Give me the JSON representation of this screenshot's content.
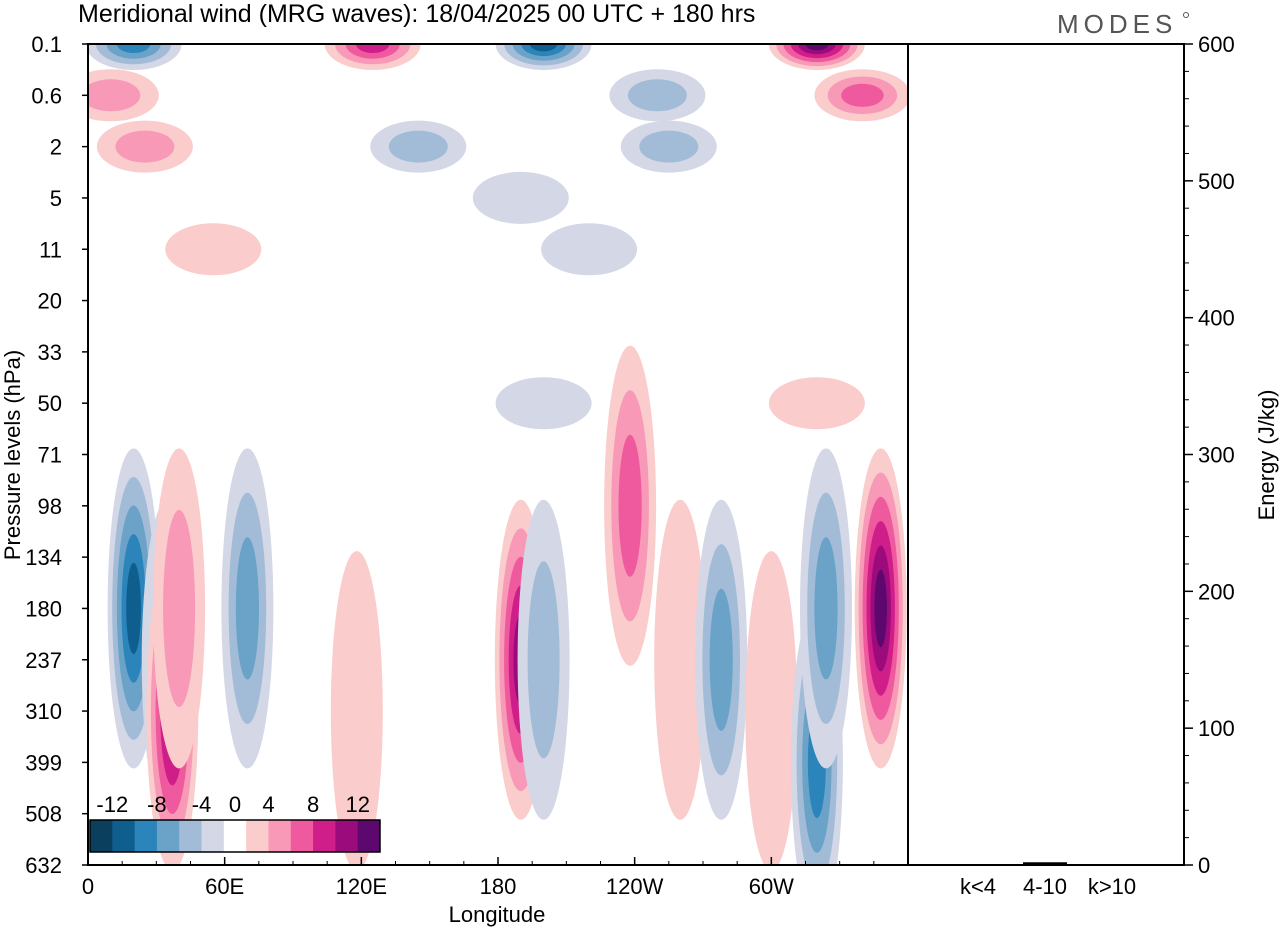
{
  "title": "Meridional wind (MRG waves):  18/04/2025  00 UTC  + 180 hrs",
  "logo": "MODES",
  "chart_data": {
    "type": "heatmap",
    "title": "Meridional wind (MRG waves):  18/04/2025  00 UTC  + 180 hrs",
    "xlabel": "Longitude",
    "ylabel": "Pressure levels (hPa)",
    "x_ticks": [
      "0",
      "60E",
      "120E",
      "180",
      "120W",
      "60W"
    ],
    "y_ticks": [
      "0.1",
      "0.6",
      "2",
      "5",
      "11",
      "20",
      "33",
      "50",
      "71",
      "98",
      "134",
      "180",
      "237",
      "310",
      "399",
      "508",
      "632"
    ],
    "colorbar": {
      "labels": [
        "-12",
        "-8",
        "-4",
        "0",
        "4",
        "8",
        "12"
      ],
      "levels": [
        -14,
        -12,
        -10,
        -8,
        -6,
        -4,
        -2,
        2,
        4,
        6,
        8,
        10,
        12,
        14
      ],
      "colors": [
        "#0b3f5e",
        "#0f5f8e",
        "#2b84ba",
        "#6aa2c8",
        "#a2bcd8",
        "#d3d7e6",
        "#ffffff",
        "#fbcccc",
        "#f799b7",
        "#ef5a9e",
        "#cf1d8a",
        "#9c0b7c",
        "#5c086e"
      ]
    },
    "blobs": [
      {
        "lon": 20,
        "p": 180,
        "value": -10.5
      },
      {
        "lon": 35,
        "p": 237,
        "value": -5
      },
      {
        "lon": 37,
        "p": 310,
        "value": 10.5
      },
      {
        "lon": 40,
        "p": 180,
        "value": 5
      },
      {
        "lon": 70,
        "p": 180,
        "value": -7
      },
      {
        "lon": 190,
        "p": 237,
        "value": 11
      },
      {
        "lon": 200,
        "p": 237,
        "value": -4.5
      },
      {
        "lon": 238,
        "p": 98,
        "value": 6
      },
      {
        "lon": 260,
        "p": 237,
        "value": 3
      },
      {
        "lon": 278,
        "p": 237,
        "value": -6
      },
      {
        "lon": 300,
        "p": 310,
        "value": 3.5
      },
      {
        "lon": 320,
        "p": 399,
        "value": -8.5
      },
      {
        "lon": 324,
        "p": 180,
        "value": -7
      },
      {
        "lon": 348,
        "p": 180,
        "value": 12.5
      },
      {
        "lon": 118,
        "p": 310,
        "value": 3
      },
      {
        "lon": 20,
        "p": 0.1,
        "value": -8
      },
      {
        "lon": 125,
        "p": 0.1,
        "value": 8
      },
      {
        "lon": 200,
        "p": 0.1,
        "value": -10
      },
      {
        "lon": 320,
        "p": 0.1,
        "value": 12.5
      },
      {
        "lon": 10,
        "p": 0.6,
        "value": 5
      },
      {
        "lon": 25,
        "p": 2,
        "value": 5
      },
      {
        "lon": 340,
        "p": 0.6,
        "value": 7
      },
      {
        "lon": 250,
        "p": 0.6,
        "value": -4
      },
      {
        "lon": 145,
        "p": 2,
        "value": -5
      },
      {
        "lon": 255,
        "p": 2,
        "value": -5
      },
      {
        "lon": 190,
        "p": 5,
        "value": -3
      },
      {
        "lon": 55,
        "p": 11,
        "value": 3
      },
      {
        "lon": 220,
        "p": 11,
        "value": -3
      },
      {
        "lon": 320,
        "p": 50,
        "value": 3
      },
      {
        "lon": 200,
        "p": 50,
        "value": -3
      }
    ],
    "energy_panel": {
      "ylabel": "Energy (J/kg)",
      "ylim": [
        0,
        600
      ],
      "y_ticks": [
        "0",
        "100",
        "200",
        "300",
        "400",
        "500",
        "600"
      ],
      "categories": [
        "k<4",
        "4-10",
        "k>10"
      ],
      "values": [
        0.5,
        2,
        0.3
      ]
    }
  }
}
